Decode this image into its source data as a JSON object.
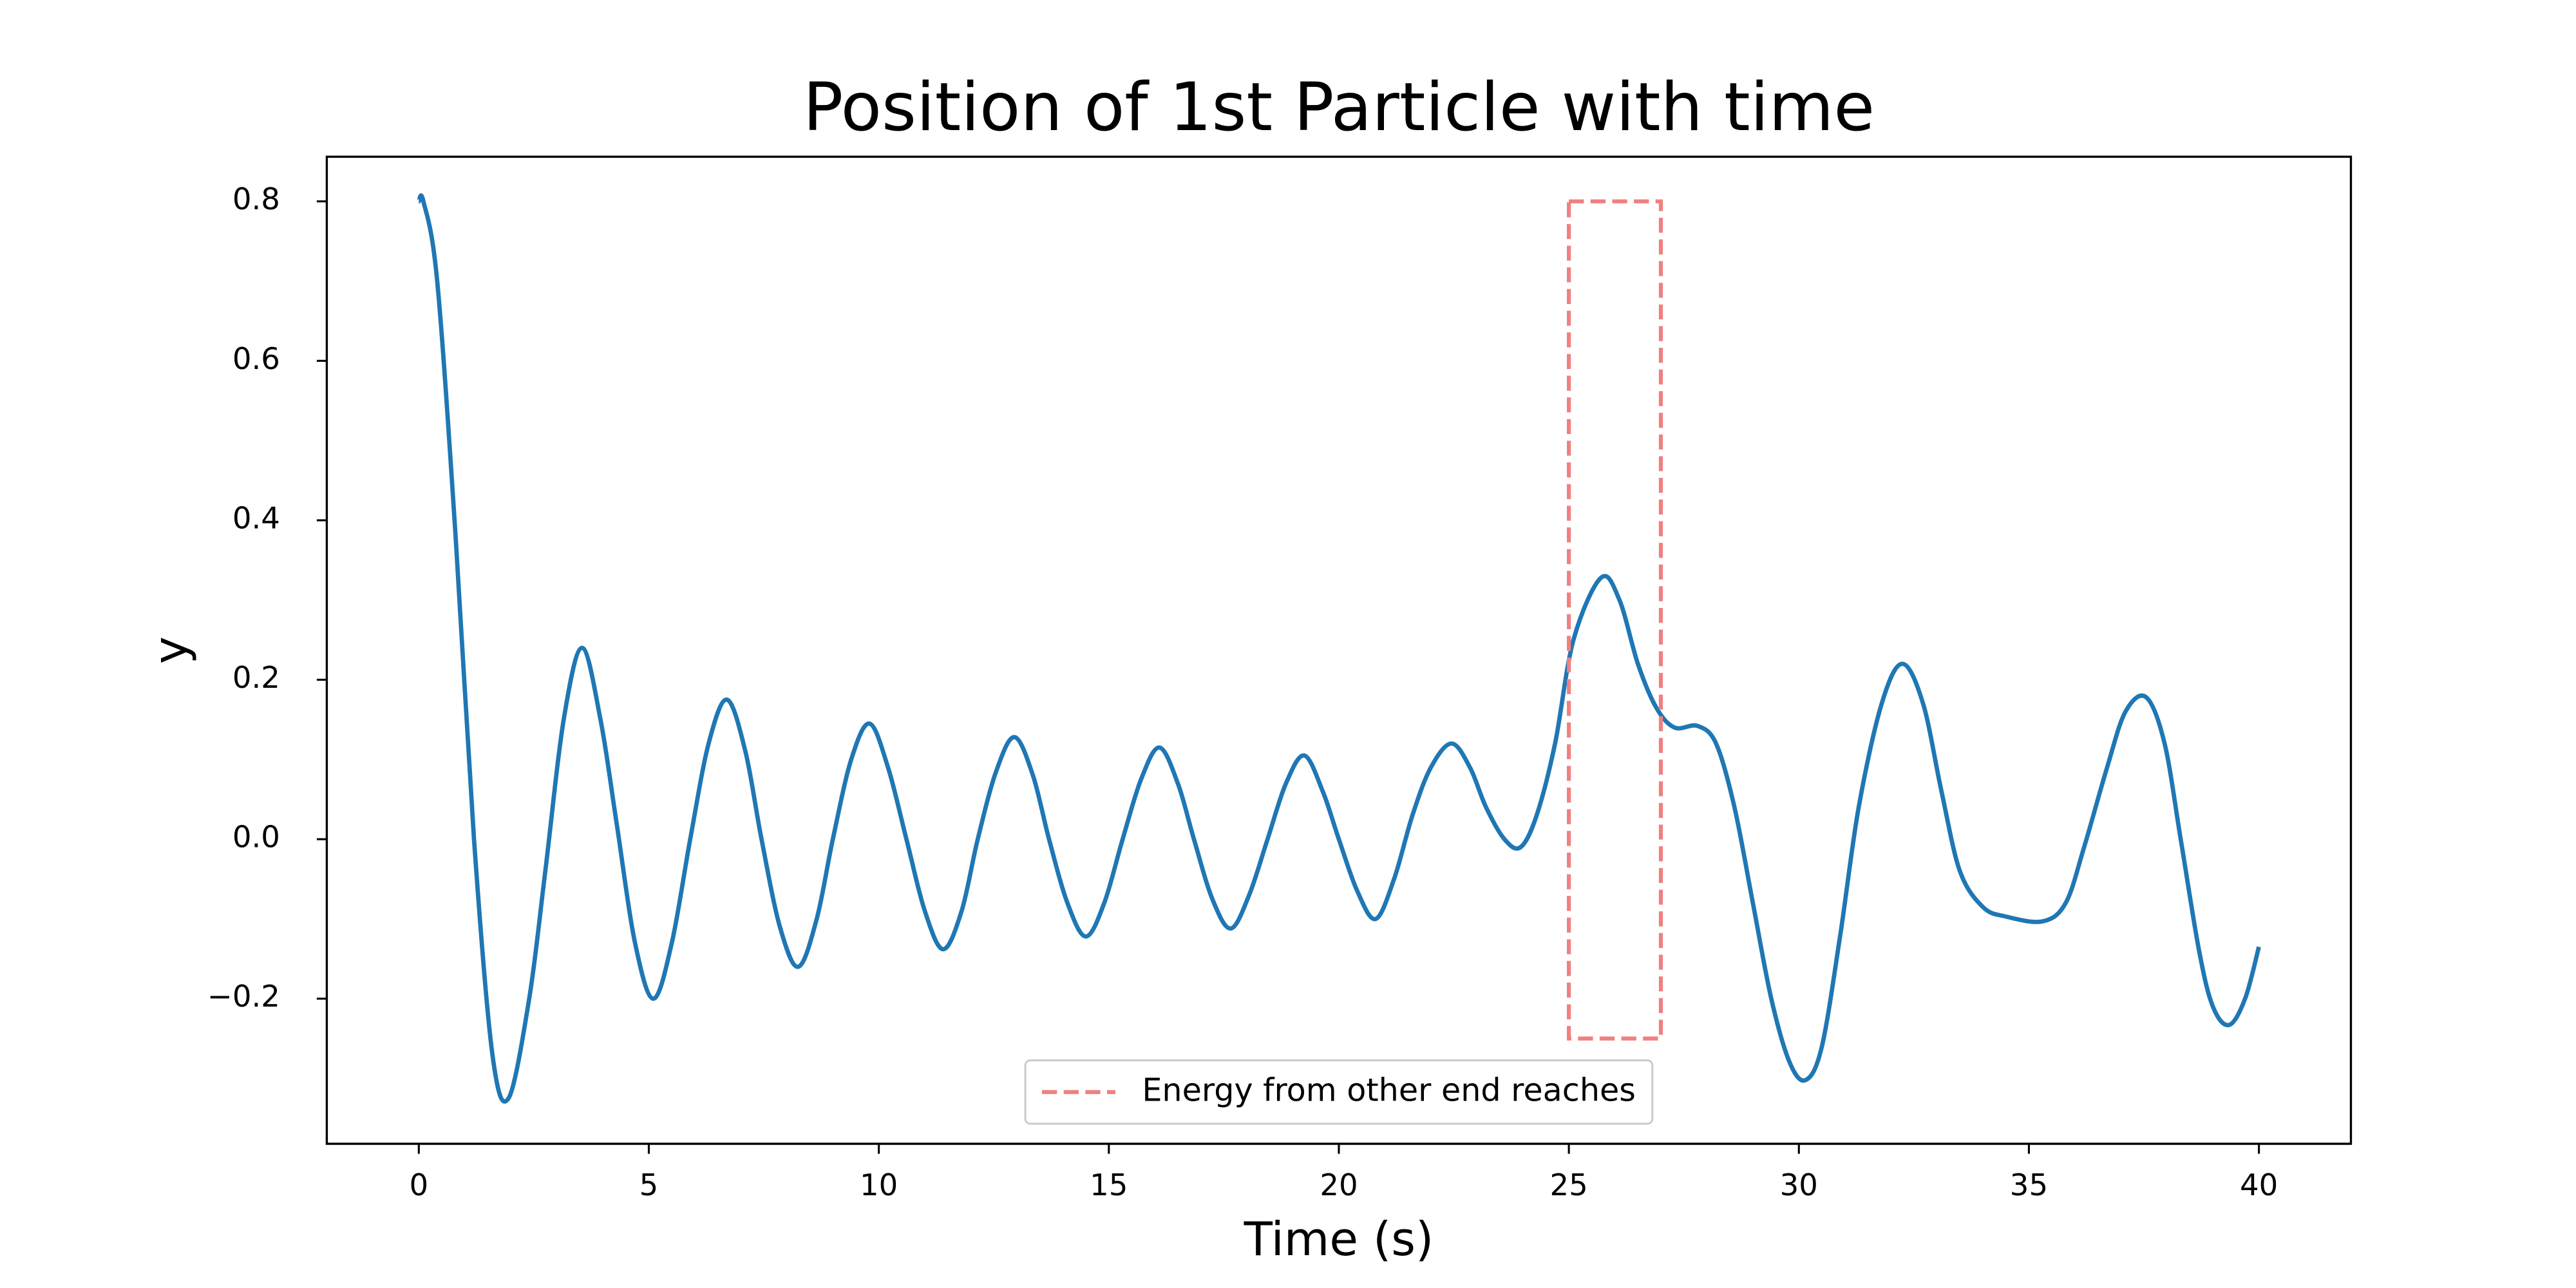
{
  "chart_data": {
    "type": "line",
    "title": "Position of 1st Particle with time",
    "xlabel": "Time (s)",
    "ylabel": "y",
    "color": "#1f77b4",
    "x": [
      0,
      0.1,
      0.4,
      0.8,
      1.2,
      1.6,
      1.95,
      2.4,
      2.75,
      3.15,
      3.55,
      3.95,
      4.3,
      4.7,
      5.1,
      5.5,
      5.9,
      6.3,
      6.7,
      7.1,
      7.45,
      7.85,
      8.25,
      8.65,
      9.0,
      9.4,
      9.8,
      10.2,
      10.6,
      11.0,
      11.4,
      11.8,
      12.15,
      12.55,
      12.95,
      13.35,
      13.7,
      14.1,
      14.5,
      14.9,
      15.3,
      15.7,
      16.1,
      16.5,
      16.85,
      17.25,
      17.65,
      18.05,
      18.45,
      18.85,
      19.25,
      19.65,
      20.0,
      20.4,
      20.8,
      21.2,
      21.6,
      22.0,
      22.45,
      22.85,
      23.2,
      23.6,
      23.95,
      24.3,
      24.7,
      25.1,
      25.7,
      26.1,
      26.5,
      26.9,
      27.3,
      27.8,
      28.2,
      28.6,
      29.0,
      29.4,
      29.8,
      30.15,
      30.5,
      30.9,
      31.3,
      31.8,
      32.25,
      32.7,
      33.1,
      33.5,
      34.0,
      34.5,
      35.3,
      35.8,
      36.2,
      36.7,
      37.1,
      37.55,
      37.95,
      38.3,
      38.7,
      39.0,
      39.35,
      39.7,
      40.0
    ],
    "values": [
      0.8,
      0.8,
      0.7,
      0.38,
      0.0,
      -0.27,
      -0.325,
      -0.2,
      -0.04,
      0.15,
      0.24,
      0.15,
      0.02,
      -0.13,
      -0.2,
      -0.13,
      0.0,
      0.12,
      0.175,
      0.11,
      0.0,
      -0.11,
      -0.16,
      -0.1,
      0.0,
      0.1,
      0.145,
      0.09,
      0.0,
      -0.09,
      -0.138,
      -0.09,
      0.0,
      0.085,
      0.128,
      0.08,
      0.0,
      -0.08,
      -0.122,
      -0.08,
      0.0,
      0.075,
      0.115,
      0.07,
      0.0,
      -0.075,
      -0.112,
      -0.07,
      0.0,
      0.07,
      0.105,
      0.06,
      0.0,
      -0.065,
      -0.1,
      -0.05,
      0.03,
      0.09,
      0.12,
      0.09,
      0.04,
      0.0,
      -0.01,
      0.03,
      0.12,
      0.25,
      0.328,
      0.3,
      0.22,
      0.165,
      0.14,
      0.142,
      0.12,
      0.04,
      -0.08,
      -0.2,
      -0.28,
      -0.302,
      -0.26,
      -0.12,
      0.04,
      0.17,
      0.22,
      0.17,
      0.06,
      -0.04,
      -0.085,
      -0.097,
      -0.103,
      -0.08,
      -0.01,
      0.09,
      0.16,
      0.178,
      0.12,
      0.0,
      -0.14,
      -0.21,
      -0.233,
      -0.2,
      -0.135
    ],
    "highlight": {
      "name": "Energy from other end reaches",
      "color": "#f08080",
      "x": [
        25,
        27
      ],
      "y": [
        -0.25,
        0.8
      ]
    },
    "legend": "lower center",
    "xlim": [
      -2,
      42
    ],
    "xticks": [
      0,
      5,
      10,
      15,
      20,
      25,
      30,
      35,
      40
    ],
    "ylim": [
      -0.382,
      0.856
    ],
    "yticks": [
      {
        "value": -0.2,
        "label": "−0.2"
      },
      {
        "value": 0,
        "label": "0.0"
      },
      0.2,
      0.4,
      0.6,
      0.8
    ]
  }
}
